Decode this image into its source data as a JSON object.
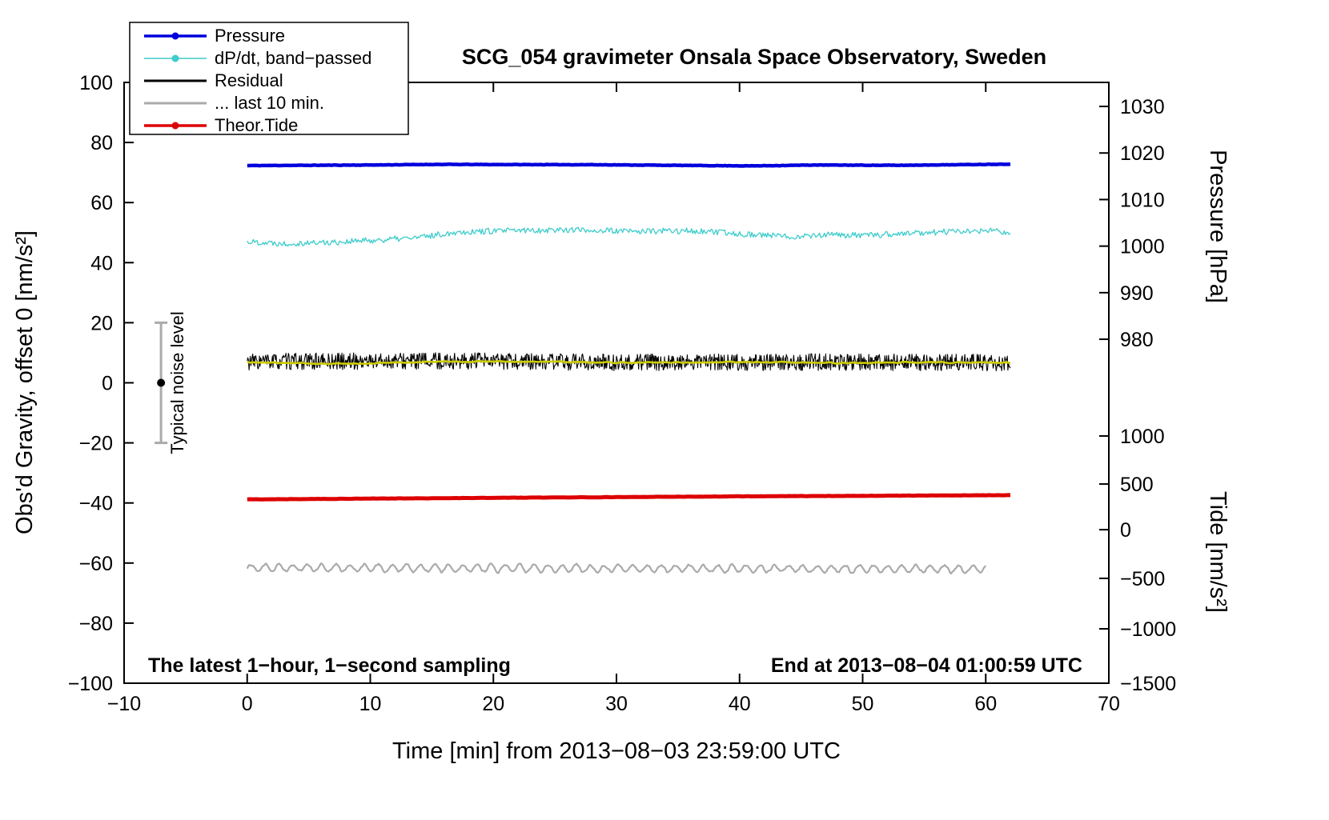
{
  "window": {
    "title": "SCG_054 gravimeter Onsala Space Observatory, Sweden"
  },
  "chart_data": {
    "type": "line",
    "title": "SCG_054 gravimeter Onsala Space Observatory, Sweden",
    "xlabel": "Time [min] from 2013−08−03 23:59:00 UTC",
    "ylabel_left": "Obs'd Gravity, offset 0 [nm/s²]",
    "ylabel_pressure": "Pressure [hPa]",
    "ylabel_tide": "Tide [nm/s²]",
    "xlim": [
      -10,
      70
    ],
    "ylim": [
      -100,
      100
    ],
    "grid": false,
    "legend_position": "top-left",
    "background_color": "#ffffff",
    "frame_color": "#000000",
    "x_ticks": [
      {
        "v": -10,
        "label": "−10"
      },
      {
        "v": 0,
        "label": "0"
      },
      {
        "v": 10,
        "label": "10"
      },
      {
        "v": 20,
        "label": "20"
      },
      {
        "v": 30,
        "label": "30"
      },
      {
        "v": 40,
        "label": "40"
      },
      {
        "v": 50,
        "label": "50"
      },
      {
        "v": 60,
        "label": "60"
      },
      {
        "v": 70,
        "label": "70"
      }
    ],
    "y_ticks_left": [
      {
        "v": 100,
        "label": "100"
      },
      {
        "v": 80,
        "label": "80"
      },
      {
        "v": 60,
        "label": "60"
      },
      {
        "v": 40,
        "label": "40"
      },
      {
        "v": 20,
        "label": "20"
      },
      {
        "v": 0,
        "label": "0"
      },
      {
        "v": -20,
        "label": "−20"
      },
      {
        "v": -40,
        "label": "−40"
      },
      {
        "v": -60,
        "label": "−60"
      },
      {
        "v": -80,
        "label": "−80"
      },
      {
        "v": -100,
        "label": "−100"
      }
    ],
    "pressure_ticks": [
      {
        "v": 92.0,
        "label": "1030"
      },
      {
        "v": 76.5,
        "label": "1020"
      },
      {
        "v": 61.0,
        "label": "1010"
      },
      {
        "v": 45.5,
        "label": "1000"
      },
      {
        "v": 30.0,
        "label": "990"
      },
      {
        "v": 14.5,
        "label": "980"
      }
    ],
    "tide_ticks": [
      {
        "v": -17.7,
        "label": "1000"
      },
      {
        "v": -33.7,
        "label": "500"
      },
      {
        "v": -48.9,
        "label": "0"
      },
      {
        "v": -65.1,
        "label": "−500"
      },
      {
        "v": -81.9,
        "label": "−1000"
      },
      {
        "v": -100,
        "label": "−1500"
      }
    ],
    "series": [
      {
        "name": "dpdt",
        "label": "dP/dt, band−passed",
        "color": "#3ecccc",
        "width": 1.3,
        "x_range": [
          0,
          62
        ],
        "points_per_min": 10,
        "noise": 1.0,
        "seed": 22,
        "base_points": [
          [
            0,
            47.0
          ],
          [
            3,
            46.4
          ],
          [
            7,
            46.8
          ],
          [
            11,
            47.6
          ],
          [
            14,
            48.4
          ],
          [
            17,
            50.2
          ],
          [
            21,
            50.6
          ],
          [
            26,
            51.0
          ],
          [
            31,
            50.4
          ],
          [
            36,
            50.6
          ],
          [
            40,
            49.6
          ],
          [
            44,
            48.7
          ],
          [
            47,
            49.3
          ],
          [
            50,
            49.0
          ],
          [
            53,
            49.6
          ],
          [
            57,
            50.3
          ],
          [
            60,
            50.6
          ],
          [
            62,
            50.2
          ]
        ]
      },
      {
        "name": "residual",
        "label": "Residual",
        "color": "#000000",
        "width": 1.1,
        "x_range": [
          0,
          62
        ],
        "points_per_min": 20,
        "noise": 2.8,
        "seed": 33,
        "base_points": [
          [
            0,
            7.0
          ],
          [
            15,
            7.3
          ],
          [
            30,
            6.8
          ],
          [
            45,
            6.9
          ],
          [
            62,
            6.7
          ]
        ]
      },
      {
        "name": "residual-filtered",
        "label": "",
        "color": "#cccc00",
        "width": 2.6,
        "x_range": [
          0,
          62
        ],
        "points_per_min": 6,
        "noise": 0.35,
        "seed": 44,
        "smooth": 2,
        "base_points": [
          [
            0,
            6.8
          ],
          [
            8,
            6.3
          ],
          [
            16,
            7.1
          ],
          [
            24,
            7.0
          ],
          [
            32,
            6.7
          ],
          [
            40,
            6.9
          ],
          [
            48,
            6.6
          ],
          [
            56,
            6.8
          ],
          [
            62,
            6.7
          ]
        ]
      },
      {
        "name": "last-10-min",
        "label": "... last 10 min.",
        "color": "#aaaaaa",
        "width": 2.2,
        "x_range": [
          0,
          60
        ],
        "points_per_min": 12,
        "noise": 0.5,
        "seed": 66,
        "smooth": 1,
        "osc": {
          "amp": 1.25,
          "period": 1.15
        },
        "base_points": [
          [
            0,
            -61.5
          ],
          [
            30,
            -61.8
          ],
          [
            60,
            -62.0
          ]
        ]
      },
      {
        "name": "theor-tide",
        "label": "Theor.Tide",
        "color": "#dd0000",
        "width": 5,
        "x_range": [
          0,
          62
        ],
        "points_per_min": 4,
        "noise": 0.05,
        "seed": 55,
        "base_points": [
          [
            0,
            -38.8
          ],
          [
            20,
            -38.3
          ],
          [
            40,
            -37.8
          ],
          [
            62,
            -37.4
          ]
        ]
      },
      {
        "name": "pressure",
        "label": "Pressure",
        "color": "#0000dd",
        "width": 4.5,
        "x_range": [
          0,
          62
        ],
        "points_per_min": 6,
        "noise": 0.07,
        "seed": 11,
        "base_points": [
          [
            0,
            72.3
          ],
          [
            10,
            72.5
          ],
          [
            15,
            72.7
          ],
          [
            28,
            72.6
          ],
          [
            41,
            72.2
          ],
          [
            46,
            72.5
          ],
          [
            53,
            72.4
          ],
          [
            62,
            72.8
          ]
        ]
      }
    ],
    "legend": {
      "items": [
        {
          "label": "Pressure",
          "color": "#0000dd",
          "lw": 3.5,
          "marker": true
        },
        {
          "label": "dP/dt, band−passed",
          "color": "#3ecccc",
          "lw": 1.5,
          "marker": true
        },
        {
          "label": "Residual",
          "color": "#000000",
          "lw": 3,
          "marker": false
        },
        {
          "label": "... last 10 min.",
          "color": "#aaaaaa",
          "lw": 3,
          "marker": false
        },
        {
          "label": "Theor.Tide",
          "color": "#dd0000",
          "lw": 3.5,
          "marker": true
        }
      ]
    },
    "noise_marker": {
      "x": -7,
      "y": 0,
      "half_range": 20,
      "label": "Typical noise level",
      "bar_color": "#aaaaaa",
      "dot_color": "#000000"
    },
    "annotations": {
      "bottom_left": "The latest 1−hour, 1−second sampling",
      "bottom_right": "End at 2013−08−04 01:00:59 UTC"
    }
  }
}
